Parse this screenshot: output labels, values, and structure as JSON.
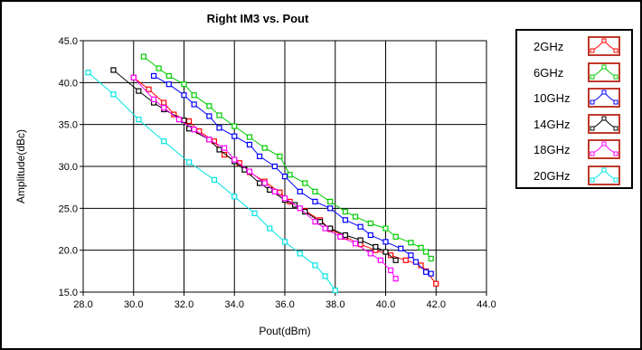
{
  "chart_data": {
    "type": "line",
    "title": "Right IM3 vs. Pout",
    "xlabel": "Pout(dBm)",
    "ylabel": "Amplitude(dBc)",
    "xlim": [
      28.0,
      44.0
    ],
    "ylim": [
      15.0,
      45.0
    ],
    "x_ticks": [
      "28.0",
      "30.0",
      "32.0",
      "34.0",
      "36.0",
      "38.0",
      "40.0",
      "42.0",
      "44.0"
    ],
    "y_ticks": [
      "15.0",
      "20.0",
      "25.0",
      "30.0",
      "35.0",
      "40.0",
      "45.0"
    ],
    "grid": true,
    "legend_position": "right",
    "series": [
      {
        "name": "2GHz",
        "color": "#ff0000",
        "points": [
          [
            30.0,
            40.6
          ],
          [
            30.6,
            39.2
          ],
          [
            31.2,
            37.6
          ],
          [
            31.6,
            36.2
          ],
          [
            32.2,
            35.4
          ],
          [
            32.6,
            34.2
          ],
          [
            33.2,
            33.0
          ],
          [
            33.6,
            31.4
          ],
          [
            34.2,
            30.4
          ],
          [
            34.6,
            29.3
          ],
          [
            35.2,
            28.2
          ],
          [
            35.8,
            26.9
          ],
          [
            36.2,
            25.8
          ],
          [
            36.8,
            24.7
          ],
          [
            37.4,
            23.6
          ],
          [
            37.8,
            22.5
          ],
          [
            38.4,
            21.6
          ],
          [
            39.0,
            20.7
          ],
          [
            39.6,
            20.0
          ],
          [
            40.2,
            19.4
          ],
          [
            40.8,
            18.8
          ],
          [
            41.4,
            18.2
          ],
          [
            41.6,
            17.5
          ],
          [
            42.0,
            16.0
          ]
        ]
      },
      {
        "name": "6GHz",
        "color": "#00cc00",
        "points": [
          [
            30.4,
            43.1
          ],
          [
            31.0,
            41.7
          ],
          [
            31.4,
            40.8
          ],
          [
            32.0,
            39.8
          ],
          [
            32.4,
            38.5
          ],
          [
            33.0,
            37.2
          ],
          [
            33.4,
            36.1
          ],
          [
            34.0,
            34.8
          ],
          [
            34.6,
            33.5
          ],
          [
            35.2,
            32.2
          ],
          [
            35.8,
            31.2
          ],
          [
            36.2,
            29.0
          ],
          [
            36.8,
            28.0
          ],
          [
            37.2,
            27.0
          ],
          [
            37.8,
            25.8
          ],
          [
            38.4,
            24.6
          ],
          [
            38.8,
            24.0
          ],
          [
            39.4,
            23.2
          ],
          [
            40.0,
            22.6
          ],
          [
            40.4,
            21.6
          ],
          [
            41.0,
            20.9
          ],
          [
            41.4,
            20.3
          ],
          [
            41.6,
            19.8
          ],
          [
            41.8,
            19.0
          ]
        ]
      },
      {
        "name": "10GHz",
        "color": "#0000ff",
        "points": [
          [
            30.8,
            40.8
          ],
          [
            31.4,
            39.8
          ],
          [
            32.0,
            38.5
          ],
          [
            32.4,
            37.4
          ],
          [
            33.0,
            36.0
          ],
          [
            33.4,
            34.6
          ],
          [
            34.0,
            33.6
          ],
          [
            34.6,
            32.6
          ],
          [
            35.0,
            31.2
          ],
          [
            35.6,
            30.0
          ],
          [
            36.0,
            28.8
          ],
          [
            36.6,
            27.0
          ],
          [
            37.2,
            25.8
          ],
          [
            37.8,
            25.0
          ],
          [
            38.4,
            23.6
          ],
          [
            39.0,
            22.8
          ],
          [
            39.4,
            21.8
          ],
          [
            40.0,
            21.0
          ],
          [
            40.6,
            20.2
          ],
          [
            41.0,
            19.4
          ],
          [
            41.2,
            18.6
          ],
          [
            41.6,
            17.4
          ],
          [
            41.8,
            17.2
          ]
        ]
      },
      {
        "name": "14GHz",
        "color": "#000000",
        "points": [
          [
            29.2,
            41.5
          ],
          [
            30.2,
            39.0
          ],
          [
            30.8,
            37.6
          ],
          [
            31.2,
            36.8
          ],
          [
            32.0,
            35.5
          ],
          [
            32.2,
            34.5
          ],
          [
            33.0,
            33.2
          ],
          [
            33.4,
            32.0
          ],
          [
            34.0,
            30.6
          ],
          [
            34.4,
            29.6
          ],
          [
            35.0,
            28.0
          ],
          [
            35.4,
            27.2
          ],
          [
            36.0,
            26.0
          ],
          [
            36.4,
            25.4
          ],
          [
            36.8,
            24.6
          ],
          [
            37.4,
            23.4
          ],
          [
            37.8,
            22.6
          ],
          [
            38.4,
            21.8
          ],
          [
            39.0,
            21.2
          ],
          [
            39.6,
            20.4
          ],
          [
            40.0,
            19.8
          ],
          [
            40.4,
            18.8
          ]
        ]
      },
      {
        "name": "18GHz",
        "color": "#ff00ff",
        "points": [
          [
            30.0,
            40.6
          ],
          [
            30.8,
            38.0
          ],
          [
            31.2,
            37.0
          ],
          [
            31.8,
            35.6
          ],
          [
            32.4,
            34.4
          ],
          [
            33.0,
            33.2
          ],
          [
            33.6,
            32.2
          ],
          [
            34.0,
            30.8
          ],
          [
            34.6,
            29.4
          ],
          [
            35.2,
            28.0
          ],
          [
            35.6,
            27.0
          ],
          [
            36.0,
            26.2
          ],
          [
            36.6,
            25.0
          ],
          [
            37.2,
            23.4
          ],
          [
            37.6,
            22.6
          ],
          [
            38.2,
            21.6
          ],
          [
            38.8,
            20.8
          ],
          [
            39.4,
            19.6
          ],
          [
            39.8,
            18.8
          ],
          [
            40.2,
            17.6
          ],
          [
            40.4,
            16.6
          ]
        ]
      },
      {
        "name": "20GHz",
        "color": "#00e5e5",
        "points": [
          [
            28.2,
            41.2
          ],
          [
            29.2,
            38.6
          ],
          [
            30.2,
            35.6
          ],
          [
            31.2,
            33.0
          ],
          [
            32.2,
            30.5
          ],
          [
            33.2,
            28.4
          ],
          [
            34.0,
            26.4
          ],
          [
            34.8,
            24.4
          ],
          [
            35.4,
            22.6
          ],
          [
            36.0,
            21.0
          ],
          [
            36.6,
            19.6
          ],
          [
            37.2,
            18.2
          ],
          [
            37.6,
            16.9
          ],
          [
            38.0,
            15.2
          ]
        ]
      }
    ]
  }
}
